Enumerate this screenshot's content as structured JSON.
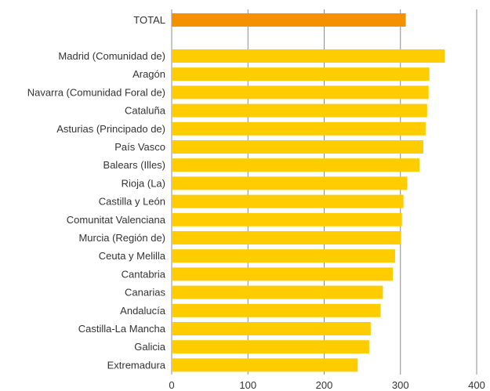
{
  "chart_data": {
    "type": "bar",
    "orientation": "horizontal",
    "title": "",
    "xlabel": "",
    "ylabel": "",
    "xlim": [
      0,
      400
    ],
    "x_ticks": [
      "0",
      "100",
      "200",
      "300",
      "400"
    ],
    "grid": true,
    "legend": "none",
    "colors": {
      "total": "#F39200",
      "regions": "#FFCC00",
      "gridline": "#8C8C8C",
      "text": "#333333"
    },
    "total": {
      "label": "TOTAL",
      "value": 307
    },
    "categories": [
      "Madrid (Comunidad de)",
      "Aragón",
      "Navarra (Comunidad Foral de)",
      "Cataluña",
      "Asturias (Principado de)",
      "País Vasco",
      "Balears (Illes)",
      "Rioja (La)",
      "Castilla y León",
      "Comunitat Valenciana",
      "Murcia (Región de)",
      "Ceuta y Melilla",
      "Cantabria",
      "Canarias",
      "Andalucía",
      "Castilla-La Mancha",
      "Galicia",
      "Extremadura"
    ],
    "values": [
      358,
      338,
      337,
      335,
      333,
      330,
      325,
      309,
      304,
      302,
      301,
      293,
      290,
      277,
      274,
      261,
      259,
      244
    ]
  }
}
